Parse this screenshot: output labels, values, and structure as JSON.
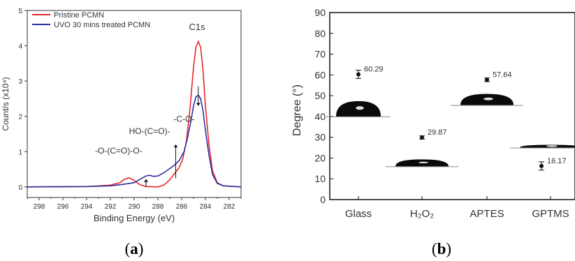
{
  "chart_data": [
    {
      "type": "line",
      "panel_label": "(a)",
      "xlabel": "Binding Energy (eV)",
      "ylabel": "Count/s (x10⁴)",
      "xlim": [
        299,
        281
      ],
      "ylim": [
        -0.3,
        5
      ],
      "x_reversed": true,
      "xticks": [
        298,
        296,
        294,
        292,
        290,
        288,
        286,
        284,
        282
      ],
      "yticks": [
        0,
        1,
        2,
        3,
        4,
        5
      ],
      "series": [
        {
          "name": "Pristine PCMN",
          "color": "#e8262a",
          "points": [
            [
              299,
              0
            ],
            [
              294,
              0.01
            ],
            [
              292,
              0.05
            ],
            [
              291.2,
              0.12
            ],
            [
              290.8,
              0.22
            ],
            [
              290.4,
              0.26
            ],
            [
              290.0,
              0.18
            ],
            [
              289.5,
              0.06
            ],
            [
              289,
              0.01
            ],
            [
              288,
              0
            ],
            [
              287.5,
              0.05
            ],
            [
              287.0,
              0.2
            ],
            [
              286.6,
              0.38
            ],
            [
              286.2,
              0.55
            ],
            [
              285.9,
              0.8
            ],
            [
              285.6,
              1.3
            ],
            [
              285.3,
              2.2
            ],
            [
              285.0,
              3.4
            ],
            [
              284.8,
              3.95
            ],
            [
              284.6,
              4.12
            ],
            [
              284.4,
              3.95
            ],
            [
              284.2,
              3.3
            ],
            [
              284.0,
              2.3
            ],
            [
              283.7,
              1.2
            ],
            [
              283.4,
              0.45
            ],
            [
              283.0,
              0.12
            ],
            [
              282.5,
              0.03
            ],
            [
              281,
              0
            ]
          ]
        },
        {
          "name": "UVO 30 mins treated PCMN",
          "color": "#2b2fa0",
          "points": [
            [
              299,
              0
            ],
            [
              294,
              0.01
            ],
            [
              292,
              0.03
            ],
            [
              291,
              0.07
            ],
            [
              290,
              0.12
            ],
            [
              289.5,
              0.22
            ],
            [
              289.0,
              0.31
            ],
            [
              288.7,
              0.33
            ],
            [
              288.4,
              0.3
            ],
            [
              288.0,
              0.31
            ],
            [
              287.5,
              0.4
            ],
            [
              287.0,
              0.52
            ],
            [
              286.6,
              0.62
            ],
            [
              286.2,
              0.75
            ],
            [
              285.8,
              1.0
            ],
            [
              285.5,
              1.4
            ],
            [
              285.2,
              1.9
            ],
            [
              285.0,
              2.3
            ],
            [
              284.8,
              2.55
            ],
            [
              284.6,
              2.6
            ],
            [
              284.4,
              2.5
            ],
            [
              284.2,
              2.15
            ],
            [
              284.0,
              1.6
            ],
            [
              283.7,
              0.9
            ],
            [
              283.4,
              0.35
            ],
            [
              283.0,
              0.1
            ],
            [
              282.5,
              0.03
            ],
            [
              281,
              0
            ]
          ]
        }
      ],
      "annotations": [
        {
          "text": "C1s",
          "x": 284.7,
          "y": 4.45
        },
        {
          "text": "-O-(C=O)-O-",
          "x": 291.3,
          "y": 0.95
        },
        {
          "text": "HO-(C=O)-",
          "x": 288.7,
          "y": 1.5
        },
        {
          "text": "-C-O-",
          "x": 285.8,
          "y": 1.85
        }
      ],
      "arrows": [
        {
          "x": 289.0,
          "y_from": 0.0,
          "y_to": 0.22,
          "dir": "up"
        },
        {
          "x": 286.5,
          "y_from": 0.25,
          "y_to": 1.2,
          "dir": "up"
        },
        {
          "x": 284.6,
          "y_from": 2.85,
          "y_to": 2.3,
          "dir": "down"
        }
      ]
    },
    {
      "type": "scatter",
      "panel_label": "(b)",
      "xlabel": "",
      "ylabel": "Degree (°)",
      "ylim": [
        0,
        90
      ],
      "yticks": [
        0,
        10,
        20,
        30,
        40,
        50,
        60,
        70,
        80,
        90
      ],
      "categories": [
        "Glass",
        "H₂O₂",
        "APTES",
        "GPTMS"
      ],
      "values": [
        60.29,
        29.87,
        57.64,
        16.17
      ],
      "errors": [
        2.0,
        0.8,
        0.9,
        2.0
      ],
      "labels": [
        "60.29",
        "29.87",
        "57.64",
        "16.17"
      ],
      "droplets": [
        {
          "category": "Glass",
          "y": 40
        },
        {
          "category": "H₂O₂",
          "y": 16
        },
        {
          "category": "APTES",
          "y": 45.5
        },
        {
          "category": "GPTMS",
          "y": 25
        }
      ]
    }
  ]
}
